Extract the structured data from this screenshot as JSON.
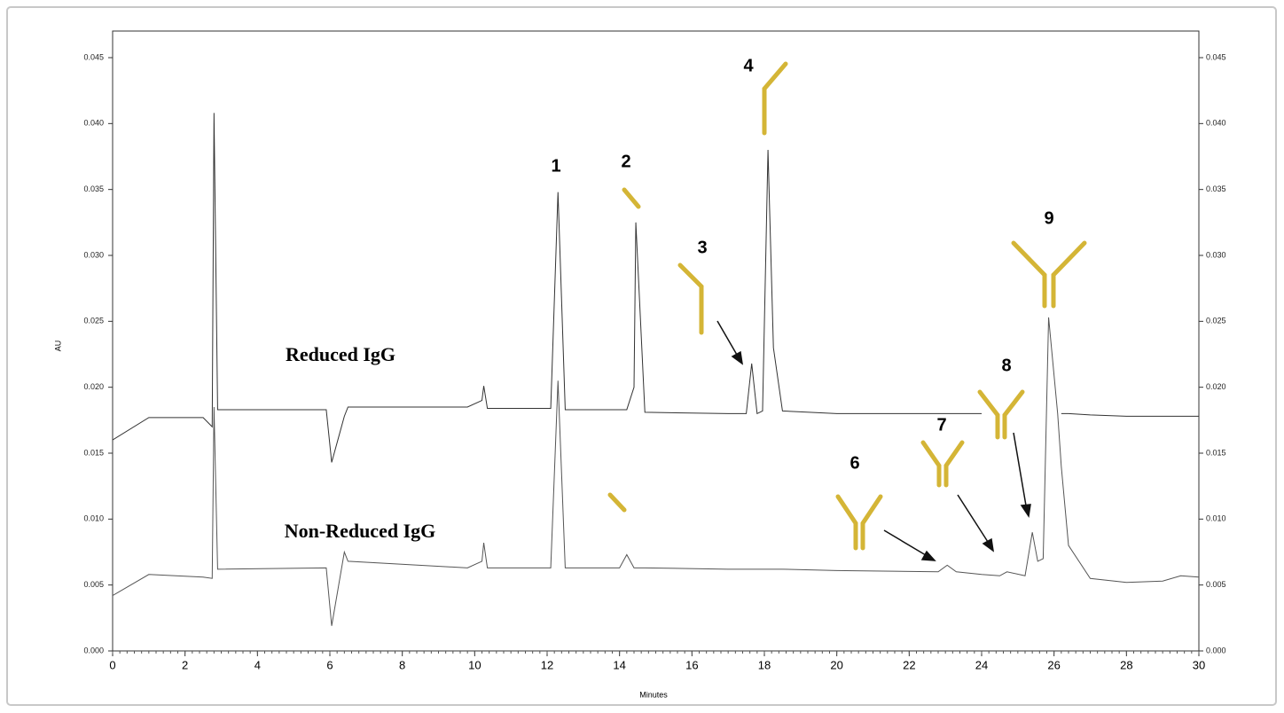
{
  "chart_data": {
    "type": "line",
    "x_label": "Minutes",
    "y_label": "AU",
    "x": [
      0,
      1,
      2.5,
      2.75,
      2.8,
      2.9,
      5.9,
      6.05,
      6.4,
      6.5,
      9.8,
      10.2,
      10.25,
      10.35,
      12.1,
      12.3,
      12.5,
      14,
      14.2,
      14.4,
      14.45,
      14.7,
      17,
      17.5,
      17.65,
      17.8,
      17.95,
      18.1,
      18.25,
      18.5,
      20,
      22.8,
      23.05,
      23.3,
      24,
      24.5,
      24.7,
      25.2,
      25.4,
      25.55,
      25.7,
      25.85,
      26.1,
      26.2,
      26.4,
      27,
      28,
      29,
      29.5,
      30
    ],
    "series": [
      {
        "color": "#333333",
        "values": [
          0.016,
          0.0177,
          0.0177,
          0.017,
          0.0408,
          0.0183,
          0.0183,
          0.0143,
          0.0178,
          0.0185,
          0.0185,
          0.019,
          0.0201,
          0.0184,
          0.0184,
          0.0348,
          0.0183,
          0.0183,
          0.0183,
          0.02,
          0.0325,
          0.0181,
          0.018,
          0.018,
          0.0218,
          0.018,
          0.0182,
          0.038,
          0.023,
          0.0182,
          0.018,
          0.018,
          0.018,
          0.018,
          0.018,
          null,
          null,
          null,
          null,
          null,
          null,
          null,
          null,
          0.018,
          0.018,
          0.0179,
          0.0178,
          0.0178,
          0.0178,
          0.0178
        ]
      },
      {
        "color": "#555555",
        "values": [
          0.0042,
          0.0058,
          0.0056,
          0.0055,
          0.0185,
          0.0062,
          0.0063,
          0.0019,
          0.0075,
          0.0068,
          0.0063,
          0.0068,
          0.0082,
          0.0063,
          0.0063,
          0.0205,
          0.0063,
          0.0063,
          0.0073,
          0.0063,
          0.0063,
          0.0063,
          0.0062,
          0.0062,
          0.0062,
          0.0062,
          0.0062,
          0.0062,
          0.0062,
          0.0062,
          0.0061,
          0.006,
          0.0065,
          0.006,
          0.0058,
          0.0057,
          0.006,
          0.0057,
          0.009,
          0.0068,
          0.007,
          0.0253,
          0.018,
          0.014,
          0.008,
          0.0055,
          0.0052,
          0.0053,
          0.0057,
          0.0056
        ]
      }
    ],
    "xlim": [
      0,
      30
    ],
    "xticks": [
      0,
      2,
      4,
      6,
      8,
      10,
      12,
      14,
      16,
      18,
      20,
      22,
      24,
      26,
      28,
      30
    ],
    "ylim": [
      0,
      0.045
    ],
    "yticks": [
      {
        "value": 0,
        "label": "0.000"
      },
      {
        "value": 0.005,
        "label": "0.005"
      },
      {
        "value": 0.01,
        "label": "0.010"
      },
      {
        "value": 0.015,
        "label": "0.015"
      },
      {
        "value": 0.02,
        "label": "0.020"
      },
      {
        "value": 0.025,
        "label": "0.025"
      },
      {
        "value": 0.03,
        "label": "0.030"
      },
      {
        "value": 0.035,
        "label": "0.035"
      },
      {
        "value": 0.04,
        "label": "0.040"
      },
      {
        "value": 0.045,
        "label": "0.045"
      }
    ],
    "y2lim": [
      0,
      0.045
    ],
    "y2ticks": [
      {
        "value": 0,
        "label": "0.000"
      },
      {
        "value": 0.005,
        "label": "0.005"
      },
      {
        "value": 0.01,
        "label": "0.010"
      },
      {
        "value": 0.015,
        "label": "0.015"
      },
      {
        "value": 0.02,
        "label": "0.020"
      },
      {
        "value": 0.025,
        "label": "0.025"
      },
      {
        "value": 0.03,
        "label": "0.030"
      },
      {
        "value": 0.035,
        "label": "0.035"
      },
      {
        "value": 0.04,
        "label": "0.040"
      },
      {
        "value": 0.045,
        "label": "0.045"
      }
    ],
    "annotations": [
      "1",
      "2",
      "3",
      "4",
      "6",
      "7",
      "8",
      "9",
      "Reduced IgG",
      "Non-Reduced IgG"
    ]
  }
}
